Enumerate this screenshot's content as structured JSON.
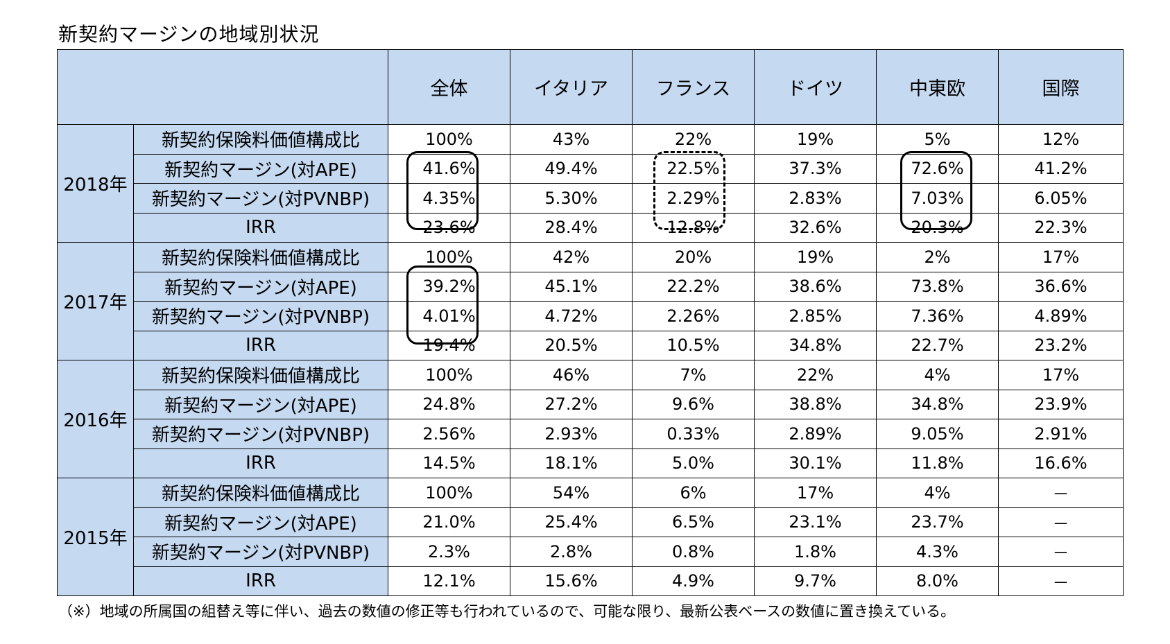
{
  "title": "新契約マージンの地域別状況",
  "footnote": "（※）地域の所属国の組替え等に伴い、過去の数値の修正等も行われているので、可能な限り、最新公表ベースの数値に置き換えている。",
  "header": {
    "corner": "",
    "regions": [
      "全体",
      "イタリア",
      "フランス",
      "ドイツ",
      "中東欧",
      "国際"
    ]
  },
  "metrics": [
    "新契約保険料価値構成比",
    "新契約マージン(対APE)",
    "新契約マージン(対PVNBP)",
    "IRR"
  ],
  "years": [
    {
      "label": "2018年",
      "rows": [
        [
          "100%",
          "43%",
          "22%",
          "19%",
          "5%",
          "12%"
        ],
        [
          "41.6%",
          "49.4%",
          "22.5%",
          "37.3%",
          "72.6%",
          "41.2%"
        ],
        [
          "4.35%",
          "5.30%",
          "2.29%",
          "2.83%",
          "7.03%",
          "6.05%"
        ],
        [
          "23.6%",
          "28.4%",
          "12.8%",
          "32.6%",
          "20.3%",
          "22.3%"
        ]
      ]
    },
    {
      "label": "2017年",
      "rows": [
        [
          "100%",
          "42%",
          "20%",
          "19%",
          "2%",
          "17%"
        ],
        [
          "39.2%",
          "45.1%",
          "22.2%",
          "38.6%",
          "73.8%",
          "36.6%"
        ],
        [
          "4.01%",
          "4.72%",
          "2.26%",
          "2.85%",
          "7.36%",
          "4.89%"
        ],
        [
          "19.4%",
          "20.5%",
          "10.5%",
          "34.8%",
          "22.7%",
          "23.2%"
        ]
      ]
    },
    {
      "label": "2016年",
      "rows": [
        [
          "100%",
          "46%",
          "7%",
          "22%",
          "4%",
          "17%"
        ],
        [
          "24.8%",
          "27.2%",
          "9.6%",
          "38.8%",
          "34.8%",
          "23.9%"
        ],
        [
          "2.56%",
          "2.93%",
          "0.33%",
          "2.89%",
          "9.05%",
          "2.91%"
        ],
        [
          "14.5%",
          "18.1%",
          "5.0%",
          "30.1%",
          "11.8%",
          "16.6%"
        ]
      ]
    },
    {
      "label": "2015年",
      "rows": [
        [
          "100%",
          "54%",
          "6%",
          "17%",
          "4%",
          "－"
        ],
        [
          "21.0%",
          "25.4%",
          "6.5%",
          "23.1%",
          "23.7%",
          "－"
        ],
        [
          "2.3%",
          "2.8%",
          "0.8%",
          "1.8%",
          "4.3%",
          "－"
        ],
        [
          "12.1%",
          "15.6%",
          "4.9%",
          "9.7%",
          "8.0%",
          "－"
        ]
      ]
    }
  ]
}
